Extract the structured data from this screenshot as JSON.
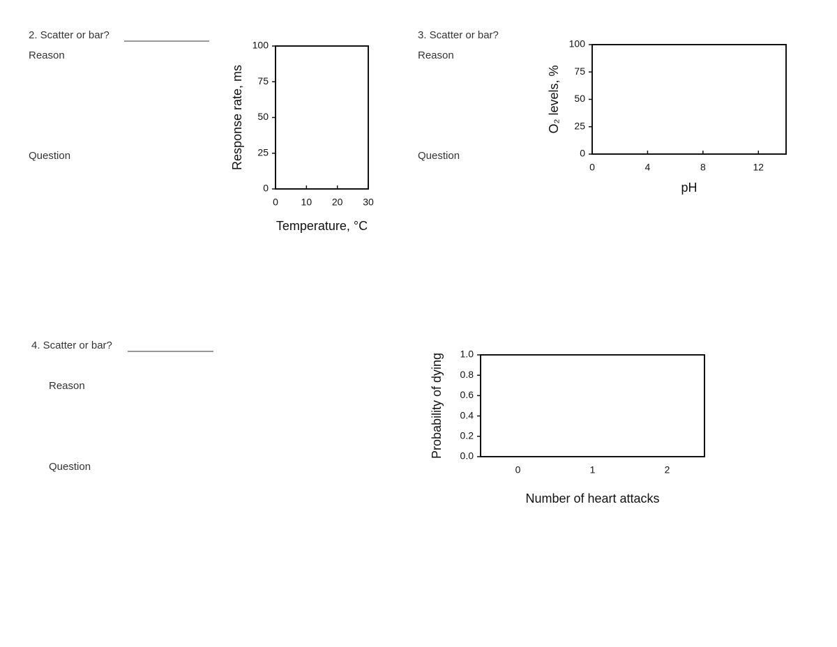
{
  "questions": [
    {
      "prompt": "2. Scatter or bar?",
      "reason": "Reason",
      "question": "Question"
    },
    {
      "prompt": "3. Scatter or bar?",
      "reason": "Reason",
      "question": "Question"
    },
    {
      "prompt": "4. Scatter or bar?",
      "reason": "Reason",
      "question": "Question"
    }
  ],
  "charts": [
    {
      "xlabel": "Temperature, °C",
      "ylabel": "Response rate, ms",
      "xlim": [
        0,
        30
      ],
      "xticks": [
        0,
        10,
        20,
        30
      ],
      "ylim": [
        0,
        100
      ],
      "yticks": [
        0,
        25,
        50,
        75,
        100
      ]
    },
    {
      "xlabel": "pH",
      "ylabel": "O₂ levels, %",
      "xlim": [
        0,
        14
      ],
      "xticks": [
        0,
        4,
        8,
        12
      ],
      "ylim": [
        0,
        100
      ],
      "yticks": [
        0,
        25,
        50,
        75,
        100
      ]
    },
    {
      "xlabel": "Number of heart attacks",
      "ylabel": "Probability of dying",
      "categories": [
        "0",
        "1",
        "2"
      ],
      "ylim": [
        0,
        1
      ],
      "yticks": [
        {
          "value": 0,
          "label": "0.0"
        },
        {
          "value": 0.2,
          "label": "0.2"
        },
        {
          "value": 0.4,
          "label": "0.4"
        },
        {
          "value": 0.6,
          "label": "0.6"
        },
        {
          "value": 0.8,
          "label": "0.8"
        },
        {
          "value": 1,
          "label": "1.0"
        }
      ]
    }
  ]
}
